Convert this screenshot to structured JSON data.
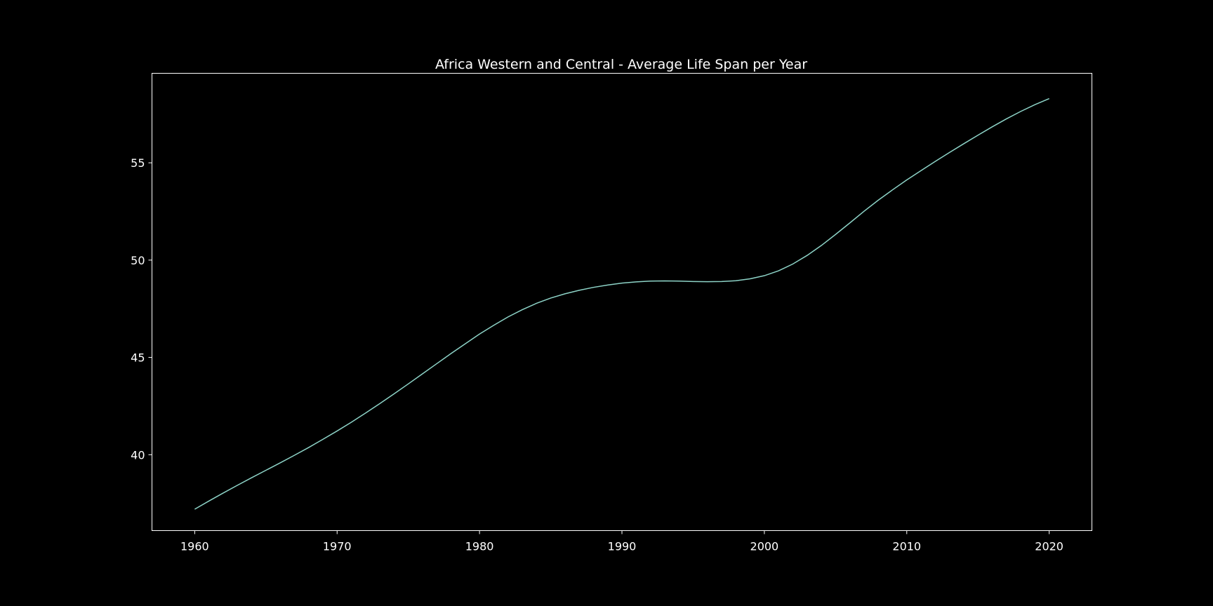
{
  "chart_data": {
    "type": "line",
    "title": "Africa Western and Central - Average Life Span per Year",
    "xlabel": "",
    "ylabel": "",
    "xlim": [
      1957,
      2023
    ],
    "ylim": [
      36.1,
      59.6
    ],
    "x_ticks": [
      1960,
      1970,
      1980,
      1990,
      2000,
      2010,
      2020
    ],
    "y_ticks": [
      40,
      45,
      50,
      55
    ],
    "grid": false,
    "legend": "none",
    "colors": {
      "background": "#000000",
      "axes": "#ffffff",
      "line": "#8dd3c7",
      "text": "#ffffff"
    },
    "series": [
      {
        "x": [
          1960,
          1961,
          1962,
          1963,
          1964,
          1965,
          1966,
          1967,
          1968,
          1969,
          1970,
          1971,
          1972,
          1973,
          1974,
          1975,
          1976,
          1977,
          1978,
          1979,
          1980,
          1981,
          1982,
          1983,
          1984,
          1985,
          1986,
          1987,
          1988,
          1989,
          1990,
          1991,
          1992,
          1993,
          1994,
          1995,
          1996,
          1997,
          1998,
          1999,
          2000,
          2001,
          2002,
          2003,
          2004,
          2005,
          2006,
          2007,
          2008,
          2009,
          2010,
          2011,
          2012,
          2013,
          2014,
          2015,
          2016,
          2017,
          2018,
          2019,
          2020
        ],
        "y": [
          37.2,
          37.62,
          38.03,
          38.43,
          38.82,
          39.2,
          39.58,
          39.97,
          40.37,
          40.79,
          41.22,
          41.67,
          42.14,
          42.63,
          43.13,
          43.64,
          44.16,
          44.68,
          45.2,
          45.7,
          46.2,
          46.65,
          47.08,
          47.45,
          47.78,
          48.05,
          48.27,
          48.45,
          48.6,
          48.72,
          48.82,
          48.88,
          48.92,
          48.93,
          48.92,
          48.9,
          48.89,
          48.9,
          48.94,
          49.04,
          49.2,
          49.45,
          49.8,
          50.24,
          50.75,
          51.32,
          51.91,
          52.51,
          53.08,
          53.61,
          54.12,
          54.6,
          55.07,
          55.53,
          55.98,
          56.42,
          56.85,
          57.26,
          57.64,
          57.99,
          58.3
        ]
      }
    ]
  }
}
